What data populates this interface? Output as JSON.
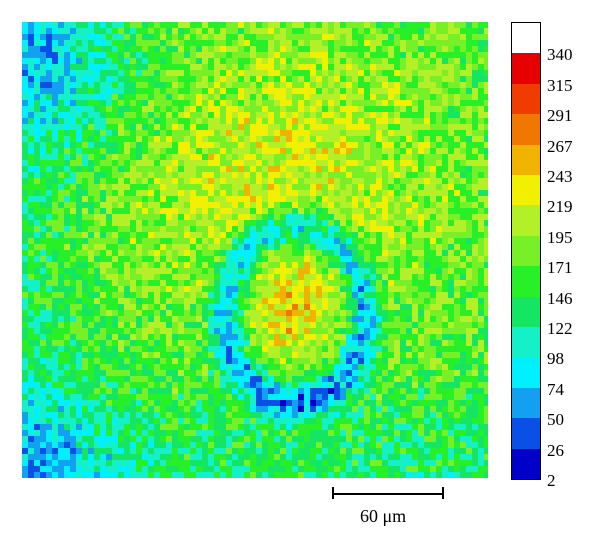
{
  "figure": {
    "image_description_icon": "confocal-intensity-heatmap",
    "colormap": [
      "#0000c8",
      "#0a50e6",
      "#14a0f0",
      "#00f0ff",
      "#14f0c8",
      "#14e664",
      "#28f028",
      "#78f028",
      "#b4f028",
      "#f0f000",
      "#f0b400",
      "#f07800",
      "#f03c00",
      "#e60000",
      "#ffffff"
    ],
    "colorbar": {
      "ticks": [
        "340",
        "315",
        "291",
        "267",
        "243",
        "219",
        "195",
        "171",
        "146",
        "122",
        "98",
        "74",
        "50",
        "26",
        "2"
      ]
    },
    "scale_bar": {
      "label": "60 μm"
    }
  }
}
